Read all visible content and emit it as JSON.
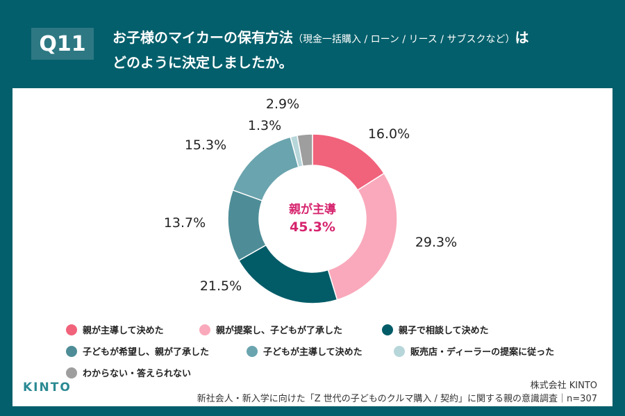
{
  "header": {
    "badge": "Q11",
    "title_main": "お子様のマイカーの保有方法",
    "title_sub": "（現金一括購入 / ローン / リース / サブスクなど）",
    "title_end": "は",
    "title_line2": "どのように決定しましたか。"
  },
  "chart_data": {
    "type": "pie",
    "donut": true,
    "center_label": "親が主導",
    "center_value": "45.3%",
    "categories": [
      "親が主導して決めた",
      "親が提案し、子どもが了承した",
      "親子で相談して決めた",
      "子どもが希望し、親が了承した",
      "子どもが主導して決めた",
      "販売店・ディーラーの提案に従った",
      "わからない・答えられない"
    ],
    "values": [
      16.0,
      29.3,
      21.5,
      13.7,
      15.3,
      1.3,
      2.9
    ],
    "labels": [
      "16.0%",
      "29.3%",
      "21.5%",
      "13.7%",
      "15.3%",
      "1.3%",
      "2.9%"
    ],
    "colors": [
      "#f1627b",
      "#f9a9bb",
      "#025c68",
      "#4e8d97",
      "#6aa4ae",
      "#b7d6da",
      "#9e9e9e"
    ],
    "legend_position": "bottom"
  },
  "footer": {
    "logo": "KINTO",
    "company": "株式会社 KINTO",
    "source": "新社会人・新入学に向けた「Z 世代の子どものクルマ購入 / 契約」に関する親の意識調査｜n=307"
  }
}
